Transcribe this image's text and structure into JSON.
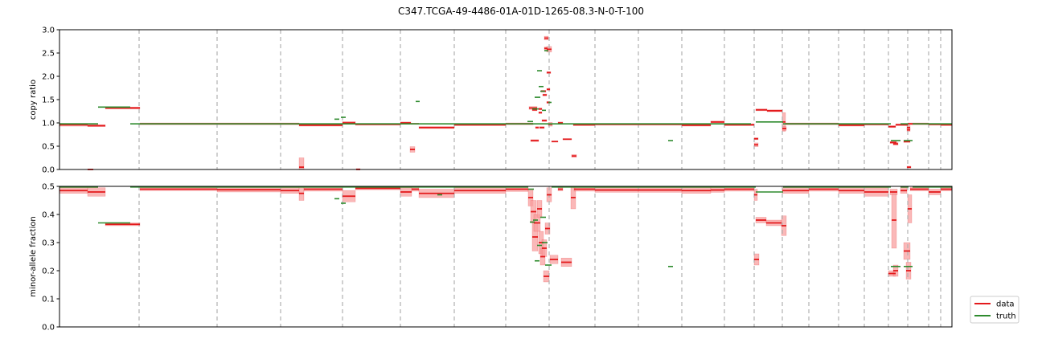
{
  "figure": {
    "title": "C347.TCGA-49-4486-01A-01D-1265-08.3-N-0-T-100"
  },
  "colors": {
    "data": "#e31a1c",
    "data_band": "#f8a0a0",
    "truth": "#2e8b2e",
    "boundary": "#b0b0b0"
  },
  "legend": {
    "placement": "lower-right",
    "entries": [
      {
        "label": "data"
      },
      {
        "label": "truth"
      }
    ]
  },
  "chart_data": [
    {
      "type": "line",
      "panel": "copy-ratio",
      "ylabel": "copy ratio",
      "xlim": [
        0,
        1110
      ],
      "ylim": [
        0,
        3.0
      ],
      "yticks": [
        "0.0",
        "0.5",
        "1.0",
        "1.5",
        "2.0",
        "2.5",
        "3.0"
      ],
      "boundaries": [
        99,
        196,
        275,
        352,
        424,
        491,
        555,
        609,
        666,
        720,
        774,
        827,
        864,
        899,
        932,
        969,
        1001,
        1031,
        1055,
        1081,
        1096
      ],
      "data_segments": [
        [
          0,
          35,
          0.96,
          0.03
        ],
        [
          35,
          57,
          0.94,
          0.02
        ],
        [
          35,
          42,
          0.0,
          0.01
        ],
        [
          57,
          100,
          1.32,
          0.02
        ],
        [
          100,
          298,
          0.98,
          0.02
        ],
        [
          298,
          304,
          0.05,
          0.2
        ],
        [
          298,
          352,
          0.95,
          0.02
        ],
        [
          352,
          368,
          1.0,
          0.03
        ],
        [
          368,
          424,
          0.97,
          0.02
        ],
        [
          369,
          374,
          0.0,
          0.02
        ],
        [
          424,
          437,
          1.0,
          0.02
        ],
        [
          437,
          447,
          0.98,
          0.01
        ],
        [
          447,
          491,
          0.9,
          0.02
        ],
        [
          436,
          442,
          0.43,
          0.06
        ],
        [
          491,
          555,
          0.96,
          0.02
        ],
        [
          555,
          589,
          0.98,
          0.02
        ],
        [
          584,
          594,
          1.32,
          0.03
        ],
        [
          588,
          594,
          1.28,
          0.02
        ],
        [
          586,
          596,
          0.62,
          0.02
        ],
        [
          592,
          596,
          0.9,
          0.02
        ],
        [
          596,
          600,
          1.3,
          0.02
        ],
        [
          596,
          600,
          1.22,
          0.02
        ],
        [
          597,
          603,
          0.9,
          0.02
        ],
        [
          599,
          605,
          1.68,
          0.02
        ],
        [
          601,
          606,
          1.6,
          0.02
        ],
        [
          600,
          606,
          1.05,
          0.02
        ],
        [
          603,
          607,
          2.6,
          0.03
        ],
        [
          603,
          608,
          2.82,
          0.04
        ],
        [
          606,
          610,
          1.44,
          0.02
        ],
        [
          606,
          610,
          1.72,
          0.02
        ],
        [
          606,
          612,
          2.58,
          0.06
        ],
        [
          606,
          611,
          2.08,
          0.02
        ],
        [
          608,
          613,
          0.97,
          0.04
        ],
        [
          612,
          620,
          0.6,
          0.01
        ],
        [
          620,
          626,
          1.0,
          0.02
        ],
        [
          626,
          637,
          0.65,
          0.01
        ],
        [
          637,
          643,
          0.29,
          0.03
        ],
        [
          639,
          666,
          0.96,
          0.02
        ],
        [
          666,
          774,
          0.97,
          0.02
        ],
        [
          774,
          810,
          0.95,
          0.02
        ],
        [
          810,
          827,
          1.02,
          0.02
        ],
        [
          827,
          864,
          0.96,
          0.02
        ],
        [
          864,
          869,
          0.66,
          0.02
        ],
        [
          864,
          869,
          0.53,
          0.04
        ],
        [
          866,
          880,
          1.28,
          0.02
        ],
        [
          880,
          899,
          1.26,
          0.02
        ],
        [
          899,
          903,
          1.02,
          0.2
        ],
        [
          899,
          904,
          0.88,
          0.04
        ],
        [
          903,
          969,
          0.98,
          0.02
        ],
        [
          969,
          1001,
          0.95,
          0.02
        ],
        [
          1001,
          1031,
          0.97,
          0.02
        ],
        [
          1031,
          1040,
          0.92,
          0.02
        ],
        [
          1040,
          1055,
          0.96,
          0.02
        ],
        [
          1033,
          1041,
          0.58,
          0.02
        ],
        [
          1037,
          1043,
          0.55,
          0.03
        ],
        [
          1050,
          1058,
          0.6,
          0.02
        ],
        [
          1054,
          1058,
          0.9,
          0.04
        ],
        [
          1054,
          1058,
          0.85,
          0.03
        ],
        [
          1054,
          1059,
          0.05,
          0.02
        ],
        [
          1055,
          1081,
          0.98,
          0.02
        ],
        [
          1081,
          1096,
          0.97,
          0.02
        ],
        [
          1096,
          1110,
          0.96,
          0.02
        ]
      ],
      "truth_segments": [
        [
          0,
          48,
          0.98
        ],
        [
          48,
          88,
          1.34
        ],
        [
          88,
          592,
          0.98
        ],
        [
          342,
          348,
          1.08
        ],
        [
          350,
          356,
          1.12
        ],
        [
          443,
          448,
          1.46
        ],
        [
          582,
          589,
          1.03
        ],
        [
          588,
          596,
          1.3
        ],
        [
          591,
          598,
          1.55
        ],
        [
          594,
          600,
          2.12
        ],
        [
          596,
          602,
          1.78
        ],
        [
          598,
          604,
          1.68
        ],
        [
          600,
          605,
          1.27
        ],
        [
          603,
          608,
          2.55
        ],
        [
          608,
          612,
          1.44
        ],
        [
          592,
          860,
          0.98
        ],
        [
          757,
          763,
          0.62
        ],
        [
          866,
          900,
          1.02
        ],
        [
          900,
          1034,
          0.98
        ],
        [
          1034,
          1046,
          0.62
        ],
        [
          1046,
          1056,
          0.98
        ],
        [
          1050,
          1061,
          0.62
        ],
        [
          1061,
          1110,
          0.98
        ]
      ]
    },
    {
      "type": "line",
      "panel": "minor-allele-fraction",
      "ylabel": "minor-allele fraction",
      "xlim": [
        0,
        1110
      ],
      "ylim": [
        0,
        0.5
      ],
      "yticks": [
        "0.0",
        "0.1",
        "0.2",
        "0.3",
        "0.4",
        "0.5"
      ],
      "boundaries": [
        99,
        196,
        275,
        352,
        424,
        491,
        555,
        609,
        666,
        720,
        774,
        827,
        864,
        899,
        932,
        969,
        1001,
        1031,
        1055,
        1081,
        1096
      ],
      "data_segments": [
        [
          0,
          35,
          0.485,
          0.01
        ],
        [
          35,
          57,
          0.48,
          0.015
        ],
        [
          57,
          100,
          0.365,
          0.005
        ],
        [
          100,
          196,
          0.49,
          0.005
        ],
        [
          196,
          275,
          0.488,
          0.008
        ],
        [
          275,
          298,
          0.485,
          0.01
        ],
        [
          298,
          304,
          0.475,
          0.025
        ],
        [
          304,
          352,
          0.49,
          0.007
        ],
        [
          352,
          368,
          0.465,
          0.02
        ],
        [
          368,
          424,
          0.493,
          0.005
        ],
        [
          424,
          438,
          0.48,
          0.015
        ],
        [
          438,
          447,
          0.49,
          0.007
        ],
        [
          447,
          491,
          0.475,
          0.015
        ],
        [
          491,
          555,
          0.485,
          0.01
        ],
        [
          555,
          583,
          0.49,
          0.008
        ],
        [
          583,
          589,
          0.46,
          0.03
        ],
        [
          586,
          593,
          0.41,
          0.04
        ],
        [
          588,
          595,
          0.32,
          0.05
        ],
        [
          590,
          598,
          0.37,
          0.03
        ],
        [
          594,
          600,
          0.42,
          0.03
        ],
        [
          596,
          602,
          0.3,
          0.04
        ],
        [
          598,
          604,
          0.25,
          0.03
        ],
        [
          600,
          606,
          0.28,
          0.03
        ],
        [
          602,
          609,
          0.18,
          0.02
        ],
        [
          604,
          610,
          0.35,
          0.02
        ],
        [
          606,
          612,
          0.47,
          0.025
        ],
        [
          610,
          620,
          0.24,
          0.015
        ],
        [
          620,
          626,
          0.49,
          0.006
        ],
        [
          624,
          637,
          0.23,
          0.015
        ],
        [
          636,
          642,
          0.46,
          0.04
        ],
        [
          640,
          666,
          0.49,
          0.007
        ],
        [
          666,
          720,
          0.487,
          0.008
        ],
        [
          720,
          774,
          0.487,
          0.008
        ],
        [
          774,
          810,
          0.485,
          0.01
        ],
        [
          810,
          827,
          0.487,
          0.008
        ],
        [
          827,
          864,
          0.49,
          0.007
        ],
        [
          864,
          868,
          0.47,
          0.02
        ],
        [
          864,
          870,
          0.24,
          0.02
        ],
        [
          866,
          879,
          0.38,
          0.01
        ],
        [
          879,
          898,
          0.37,
          0.01
        ],
        [
          898,
          904,
          0.36,
          0.035
        ],
        [
          899,
          932,
          0.485,
          0.01
        ],
        [
          932,
          969,
          0.49,
          0.007
        ],
        [
          969,
          1001,
          0.485,
          0.01
        ],
        [
          1001,
          1031,
          0.48,
          0.015
        ],
        [
          1031,
          1040,
          0.19,
          0.01
        ],
        [
          1035,
          1041,
          0.38,
          0.1
        ],
        [
          1033,
          1042,
          0.48,
          0.01
        ],
        [
          1037,
          1043,
          0.2,
          0.02
        ],
        [
          1046,
          1054,
          0.485,
          0.01
        ],
        [
          1050,
          1058,
          0.27,
          0.03
        ],
        [
          1053,
          1059,
          0.2,
          0.03
        ],
        [
          1055,
          1060,
          0.42,
          0.05
        ],
        [
          1058,
          1081,
          0.49,
          0.006
        ],
        [
          1081,
          1096,
          0.48,
          0.01
        ],
        [
          1096,
          1110,
          0.49,
          0.006
        ]
      ],
      "truth_segments": [
        [
          0,
          48,
          0.5
        ],
        [
          48,
          88,
          0.37
        ],
        [
          88,
          583,
          0.5
        ],
        [
          342,
          348,
          0.456
        ],
        [
          350,
          356,
          0.44
        ],
        [
          470,
          476,
          0.47
        ],
        [
          583,
          590,
          0.49
        ],
        [
          585,
          591,
          0.373
        ],
        [
          589,
          595,
          0.38
        ],
        [
          591,
          597,
          0.235
        ],
        [
          594,
          600,
          0.29
        ],
        [
          598,
          605,
          0.39
        ],
        [
          600,
          607,
          0.3
        ],
        [
          604,
          612,
          0.22
        ],
        [
          612,
          866,
          0.5
        ],
        [
          757,
          763,
          0.215
        ],
        [
          866,
          900,
          0.48
        ],
        [
          900,
          1034,
          0.5
        ],
        [
          1034,
          1046,
          0.215
        ],
        [
          1046,
          1056,
          0.5
        ],
        [
          1050,
          1061,
          0.215
        ],
        [
          1061,
          1110,
          0.5
        ]
      ]
    }
  ]
}
